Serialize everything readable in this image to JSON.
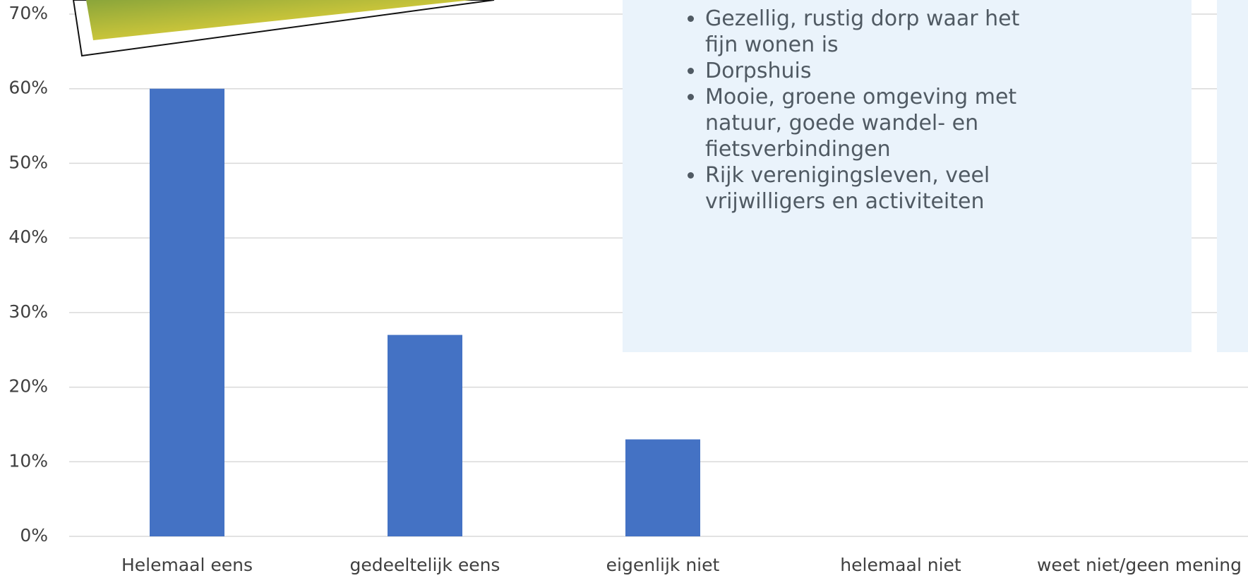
{
  "chart_data": {
    "type": "bar",
    "categories": [
      "Helemaal eens",
      "gedeeltelijk eens",
      "eigenlijk niet",
      "helemaal niet",
      "weet niet/geen mening"
    ],
    "values": [
      60,
      27,
      13,
      0,
      0
    ],
    "color": "#4472c4",
    "ylim": [
      0,
      70
    ],
    "yticks": [
      {
        "value": 0,
        "label": "0%"
      },
      {
        "value": 10,
        "label": "10%"
      },
      {
        "value": 20,
        "label": "20%"
      },
      {
        "value": 30,
        "label": "30%"
      },
      {
        "value": 40,
        "label": "40%"
      },
      {
        "value": 50,
        "label": "50%"
      },
      {
        "value": 60,
        "label": "60%"
      },
      {
        "value": 70,
        "label": "70%"
      }
    ],
    "grid": true
  },
  "panel": {
    "items": [
      "Gezellig, rustig dorp waar het fijn wonen is",
      "Dorpshuis",
      "Mooie, groene omgeving met natuur, goede wandel- en fietsverbindingen",
      "Rijk verenigingsleven, veel vrijwilligers en activiteiten"
    ]
  }
}
